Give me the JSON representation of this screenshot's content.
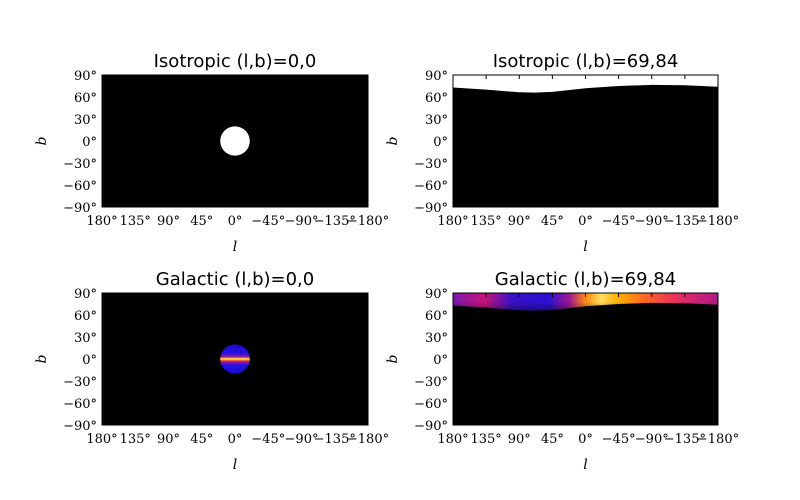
{
  "chart_data": [
    {
      "type": "heatmap",
      "title": "Isotropic (l,b)=0,0",
      "xlabel": "l",
      "ylabel": "b",
      "xticks": [
        "180°",
        "135°",
        "90°",
        "45°",
        "0°",
        "−45°",
        "−90°",
        "−135°",
        "−180°"
      ],
      "yticks": [
        "90°",
        "60°",
        "30°",
        "0°",
        "−30°",
        "−60°",
        "−90°"
      ],
      "xlim": [
        180,
        -180
      ],
      "ylim": [
        -90,
        90
      ],
      "background": "#000000",
      "feature": {
        "kind": "disc",
        "center_l": 0,
        "center_b": 0,
        "radius_deg": 20,
        "fill": "isotropic"
      }
    },
    {
      "type": "heatmap",
      "title": "Isotropic (l,b)=69,84",
      "xlabel": "l",
      "ylabel": "b",
      "xticks": [
        "180°",
        "135°",
        "90°",
        "45°",
        "0°",
        "−45°",
        "−90°",
        "−135°",
        "−180°"
      ],
      "yticks": [
        "90°",
        "60°",
        "30°",
        "0°",
        "−30°",
        "−60°",
        "−90°"
      ],
      "xlim": [
        180,
        -180
      ],
      "ylim": [
        -90,
        90
      ],
      "background": "#000000",
      "feature": {
        "kind": "cap",
        "fill": "isotropic",
        "boundary": [
          [
            180,
            73
          ],
          [
            135,
            70
          ],
          [
            90,
            66.5
          ],
          [
            69,
            66
          ],
          [
            45,
            67
          ],
          [
            0,
            72
          ],
          [
            -45,
            75
          ],
          [
            -90,
            76.5
          ],
          [
            -135,
            76
          ],
          [
            -180,
            74
          ]
        ]
      }
    },
    {
      "type": "heatmap",
      "title": "Galactic (l,b)=0,0",
      "xlabel": "l",
      "ylabel": "b",
      "xticks": [
        "180°",
        "135°",
        "90°",
        "45°",
        "0°",
        "−45°",
        "−90°",
        "−135°",
        "−180°"
      ],
      "yticks": [
        "90°",
        "60°",
        "30°",
        "0°",
        "−30°",
        "−60°",
        "−90°"
      ],
      "xlim": [
        180,
        -180
      ],
      "ylim": [
        -90,
        90
      ],
      "background": "#000000",
      "feature": {
        "kind": "disc",
        "center_l": 0,
        "center_b": 0,
        "radius_deg": 20,
        "fill": "galactic"
      }
    },
    {
      "type": "heatmap",
      "title": "Galactic (l,b)=69,84",
      "xlabel": "l",
      "ylabel": "b",
      "xticks": [
        "180°",
        "135°",
        "90°",
        "45°",
        "0°",
        "−45°",
        "−90°",
        "−135°",
        "−180°"
      ],
      "yticks": [
        "90°",
        "60°",
        "30°",
        "0°",
        "−30°",
        "−60°",
        "−90°"
      ],
      "xlim": [
        180,
        -180
      ],
      "ylim": [
        -90,
        90
      ],
      "background": "#000000",
      "feature": {
        "kind": "cap",
        "fill": "galactic",
        "boundary": [
          [
            180,
            73
          ],
          [
            135,
            70
          ],
          [
            90,
            66.5
          ],
          [
            69,
            66
          ],
          [
            45,
            67
          ],
          [
            0,
            72
          ],
          [
            -45,
            75
          ],
          [
            -90,
            76.5
          ],
          [
            -135,
            76
          ],
          [
            -180,
            74
          ]
        ]
      }
    }
  ],
  "colors": {
    "iso_fill": "#ffffff",
    "gal_low": "#1a0ad0",
    "gal_mid": "#c8148c",
    "gal_high": "#ffb000",
    "gal_peak": "#ffffc8"
  }
}
